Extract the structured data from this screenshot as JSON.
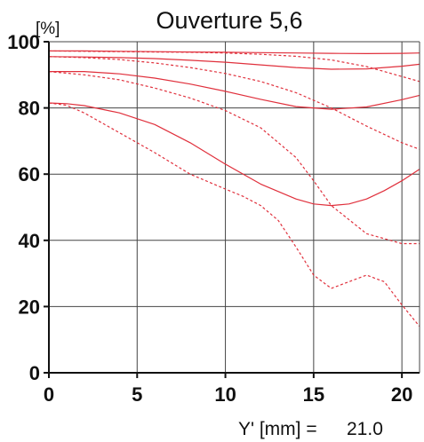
{
  "chart_data": {
    "type": "line",
    "title": "Ouverture 5,6",
    "ylabel": "[%]",
    "xlabel_prefix": "Y' [mm] =",
    "xlabel_value": "21.0",
    "xlim": [
      0,
      21
    ],
    "ylim": [
      0,
      100
    ],
    "xticks": [
      0,
      5,
      10,
      15,
      20
    ],
    "yticks": [
      0,
      20,
      40,
      60,
      80,
      100
    ],
    "grid": true,
    "line_color": "#e0303c",
    "series": [
      {
        "style": "solid",
        "x": [
          0,
          2,
          4,
          6,
          8,
          10,
          12,
          14,
          16,
          18,
          20,
          21
        ],
        "y": [
          97.2,
          97.2,
          97.1,
          97.0,
          96.9,
          96.8,
          96.7,
          96.6,
          96.5,
          96.4,
          96.5,
          96.6
        ]
      },
      {
        "style": "dashed",
        "x": [
          0,
          2,
          4,
          6,
          8,
          10,
          12,
          14,
          16,
          18,
          20,
          21
        ],
        "y": [
          97.2,
          97.1,
          97.0,
          96.9,
          96.8,
          96.6,
          96.2,
          95.6,
          94.5,
          92.5,
          89.5,
          88.0
        ]
      },
      {
        "style": "solid",
        "x": [
          0,
          2,
          4,
          6,
          8,
          10,
          12,
          14,
          16,
          18,
          20,
          21
        ],
        "y": [
          95.5,
          95.4,
          95.2,
          94.9,
          94.4,
          93.8,
          93.0,
          92.2,
          91.7,
          91.8,
          92.6,
          93.2
        ]
      },
      {
        "style": "dashed",
        "x": [
          0,
          2,
          4,
          6,
          8,
          10,
          12,
          14,
          16,
          18,
          20,
          21
        ],
        "y": [
          95.5,
          95.2,
          94.6,
          93.6,
          92.2,
          90.4,
          88.0,
          84.6,
          80.0,
          74.5,
          69.5,
          67.5
        ]
      },
      {
        "style": "solid",
        "x": [
          0,
          2,
          4,
          6,
          8,
          10,
          12,
          14,
          16,
          18,
          20,
          21
        ],
        "y": [
          91.0,
          91.0,
          90.3,
          89.0,
          87.2,
          85.0,
          82.6,
          80.4,
          79.6,
          80.3,
          82.5,
          83.8
        ]
      },
      {
        "style": "dashed",
        "x": [
          0,
          2,
          4,
          6,
          8,
          10,
          12,
          14,
          15,
          16,
          18,
          20,
          21
        ],
        "y": [
          91.0,
          90.0,
          88.5,
          86.0,
          83.0,
          79.2,
          74.0,
          65.0,
          58.0,
          50.5,
          42.0,
          39.0,
          39.0
        ]
      },
      {
        "style": "solid",
        "x": [
          0,
          1,
          2,
          4,
          6,
          8,
          10,
          12,
          14,
          15,
          16,
          17,
          18,
          19,
          20,
          21
        ],
        "y": [
          81.5,
          81.3,
          80.7,
          78.5,
          75.0,
          69.5,
          63.0,
          57.0,
          52.5,
          51.0,
          50.5,
          51.0,
          52.5,
          55.0,
          58.0,
          61.5
        ]
      },
      {
        "style": "dashed",
        "x": [
          0,
          1,
          2,
          4,
          6,
          8,
          10,
          11,
          12,
          13,
          14,
          15,
          16,
          17,
          18,
          19,
          20,
          21
        ],
        "y": [
          81.5,
          80.8,
          78.5,
          72.5,
          66.5,
          60.0,
          55.5,
          53.3,
          50.5,
          46.0,
          38.0,
          29.5,
          25.5,
          27.5,
          29.5,
          27.5,
          20.5,
          14.0
        ]
      }
    ]
  }
}
